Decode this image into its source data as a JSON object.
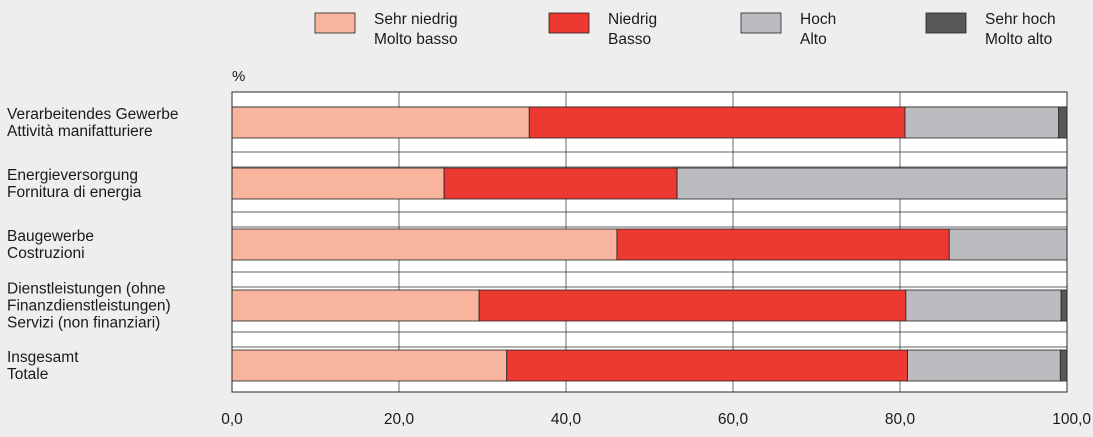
{
  "chart_data": {
    "type": "bar",
    "orientation": "horizontal",
    "stacked": true,
    "unit_label": "%",
    "xlim": [
      0,
      100
    ],
    "x_ticks": [
      "0,0",
      "20,0",
      "40,0",
      "60,0",
      "80,0",
      "100,0"
    ],
    "x_tick_values": [
      0,
      20,
      40,
      60,
      80,
      100
    ],
    "grid": true,
    "legend_position": "top",
    "categories": [
      [
        "Verarbeitendes Gewerbe",
        "Attività manifatturiere"
      ],
      [
        "Energieversorgung",
        "Fornitura di energia"
      ],
      [
        "Baugewerbe",
        "Costruzioni"
      ],
      [
        "Dienstleistungen (ohne",
        "Finanzdienstleistungen)",
        "Servizi (non finanziari)"
      ],
      [
        "Insgesamt",
        "Totale"
      ]
    ],
    "series": [
      {
        "name": [
          "Sehr niedrig",
          "Molto basso"
        ],
        "color": "#f8b49c",
        "values": [
          35.6,
          25.4,
          46.1,
          29.6,
          32.9
        ]
      },
      {
        "name": [
          "Niedrig",
          "Basso"
        ],
        "color": "#ec3a33",
        "values": [
          45.0,
          27.9,
          39.8,
          51.1,
          48.0
        ]
      },
      {
        "name": [
          "Hoch",
          "Alto"
        ],
        "color": "#bcbcc0",
        "values": [
          18.4,
          46.7,
          14.1,
          18.6,
          18.3
        ]
      },
      {
        "name": [
          "Sehr hoch",
          "Molto alto"
        ],
        "color": "#58585a",
        "values": [
          1.0,
          0.0,
          0.0,
          0.7,
          0.8
        ]
      }
    ]
  }
}
